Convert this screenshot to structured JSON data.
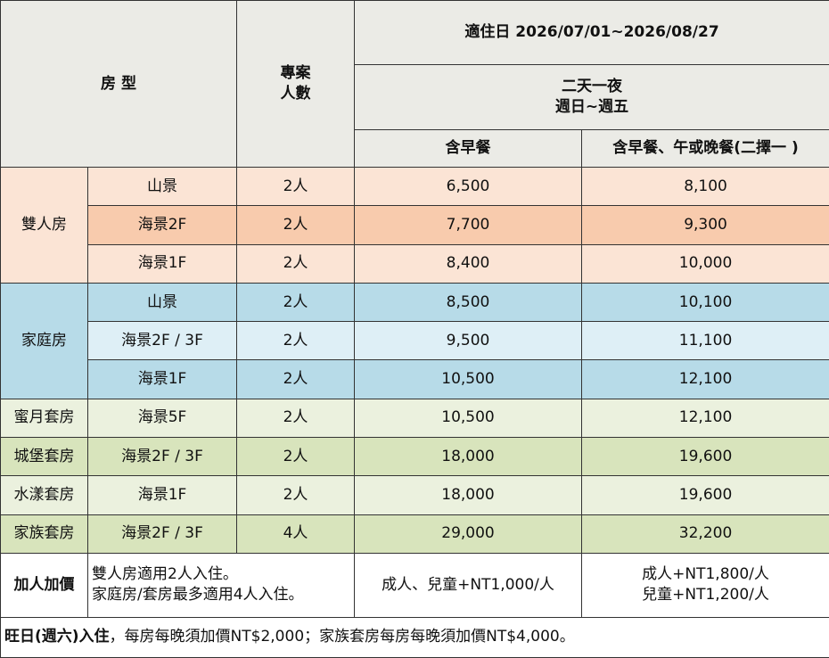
{
  "header": {
    "room_type": "房 型",
    "people": [
      "專案",
      "人數"
    ],
    "period": "適住日 2026/07/01~2026/08/27",
    "stay": [
      "二天一夜",
      "週日~週五"
    ],
    "plans": [
      "含早餐",
      "含早餐、午或晚餐(二擇一 )"
    ]
  },
  "groups": [
    {
      "name": "雙人房",
      "rows": [
        [
          "山景",
          "2人",
          "6,500",
          "8,100"
        ],
        [
          "海景2F",
          "2人",
          "7,700",
          "9,300"
        ],
        [
          "海景1F",
          "2人",
          "8,400",
          "10,000"
        ]
      ]
    },
    {
      "name": "家庭房",
      "rows": [
        [
          "山景",
          "2人",
          "8,500",
          "10,100"
        ],
        [
          "海景2F / 3F",
          "2人",
          "9,500",
          "11,100"
        ],
        [
          "海景1F",
          "2人",
          "10,500",
          "12,100"
        ]
      ]
    },
    {
      "name": "蜜月套房",
      "rows": [
        [
          "海景5F",
          "2人",
          "10,500",
          "12,100"
        ]
      ]
    },
    {
      "name": "城堡套房",
      "rows": [
        [
          "海景2F / 3F",
          "2人",
          "18,000",
          "19,600"
        ]
      ]
    },
    {
      "name": "水漾套房",
      "rows": [
        [
          "海景1F",
          "2人",
          "18,000",
          "19,600"
        ]
      ]
    },
    {
      "name": "家族套房",
      "rows": [
        [
          "海景2F / 3F",
          "4人",
          "29,000",
          "32,200"
        ]
      ]
    }
  ],
  "extra": {
    "label": "加人加價",
    "rules": [
      "雙人房適用2人入住。",
      "家庭房/套房最多適用4人入住。"
    ],
    "breakfast": "成人、兒童+NT1,000/人",
    "meal": [
      "成人+NT1,800/人",
      "兒童+NT1,200/人"
    ]
  },
  "footer": {
    "bold": "旺日(週六)入住",
    "text": "，每房每晚須加價NT$2,000；家族套房每房每晚須加價NT$4,000。"
  }
}
